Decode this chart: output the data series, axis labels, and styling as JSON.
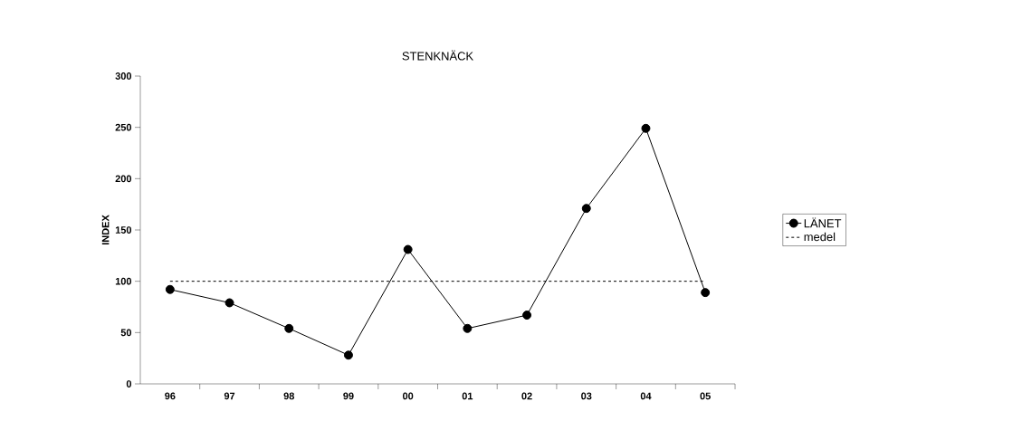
{
  "chart_data": {
    "type": "line",
    "title": "STENKNÄCK",
    "ylabel": "INDEX",
    "categories": [
      "96",
      "97",
      "98",
      "99",
      "00",
      "01",
      "02",
      "03",
      "04",
      "05"
    ],
    "series": [
      {
        "name": "LÄNET",
        "color": "#000000",
        "marker": "circle",
        "line_style": "solid",
        "values": [
          92,
          79,
          54,
          28,
          131,
          54,
          67,
          171,
          249,
          89
        ]
      },
      {
        "name": "medel",
        "color": "#000000",
        "marker": "none",
        "line_style": "dashed",
        "values": [
          100,
          100,
          100,
          100,
          100,
          100,
          100,
          100,
          100,
          100
        ]
      }
    ],
    "ylim": [
      0,
      300
    ],
    "yticks": [
      0,
      50,
      100,
      150,
      200,
      250,
      300
    ],
    "legend": "right"
  }
}
